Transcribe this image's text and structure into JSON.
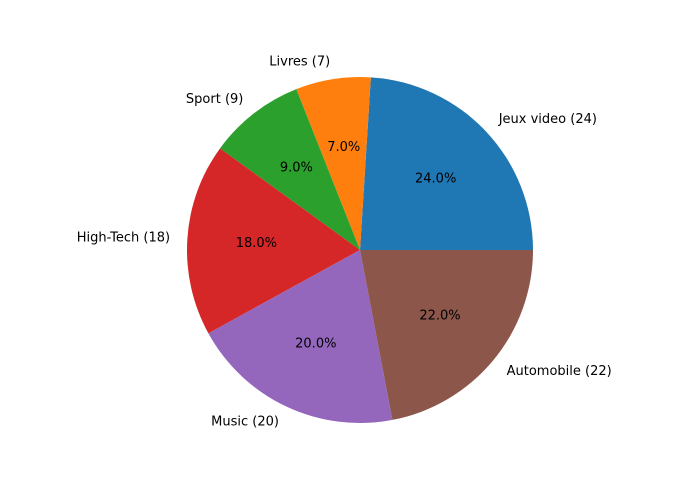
{
  "chart_data": {
    "type": "pie",
    "start_angle_deg": 0,
    "direction": "counterclockwise",
    "autopct_format": "0.0",
    "slices": [
      {
        "label": "Jeux video (24)",
        "category": "Jeux video",
        "value": 24,
        "percent_label": "24.0%",
        "color": "#1f77b4"
      },
      {
        "label": "Livres (7)",
        "category": "Livres",
        "value": 7,
        "percent_label": "7.0%",
        "color": "#ff7f0e"
      },
      {
        "label": "Sport (9)",
        "category": "Sport",
        "value": 9,
        "percent_label": "9.0%",
        "color": "#2ca02c"
      },
      {
        "label": "High-Tech (18)",
        "category": "High-Tech",
        "value": 18,
        "percent_label": "18.0%",
        "color": "#d62728"
      },
      {
        "label": "Music (20)",
        "category": "Music",
        "value": 20,
        "percent_label": "20.0%",
        "color": "#9467bd"
      },
      {
        "label": "Automobile (22)",
        "category": "Automobile",
        "value": 22,
        "percent_label": "22.0%",
        "color": "#8c564b"
      }
    ]
  }
}
